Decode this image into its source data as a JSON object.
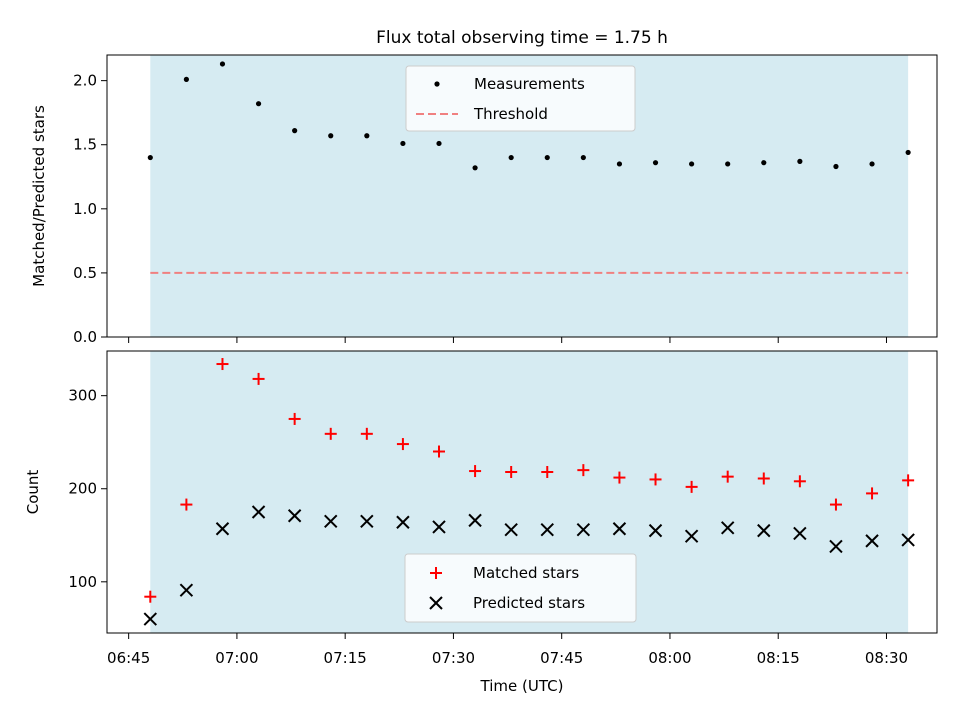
{
  "figure": {
    "title": "Flux total observing time = 1.75 h",
    "xlabel": "Time (UTC)"
  },
  "colors": {
    "shade": "#add8e6",
    "measurements": "#000000",
    "threshold": "#f08080",
    "matched": "#ff0000",
    "predicted": "#000000"
  },
  "chart_data": [
    {
      "type": "scatter",
      "panel": "top",
      "title": "Flux total observing time = 1.75 h",
      "xlabel": "",
      "ylabel": "Matched/Predicted stars",
      "ylim": [
        0,
        2.2
      ],
      "yticks": [
        0.0,
        0.5,
        1.0,
        1.5,
        2.0
      ],
      "ytick_labels": [
        "0.0",
        "0.5",
        "1.0",
        "1.5",
        "2.0"
      ],
      "xlim": [
        "06:42",
        "08:37"
      ],
      "shaded_span": [
        "06:48",
        "08:33"
      ],
      "grid": false,
      "legend_position": "upper center",
      "x": [
        "06:48",
        "06:53",
        "06:58",
        "07:03",
        "07:08",
        "07:13",
        "07:18",
        "07:23",
        "07:28",
        "07:33",
        "07:38",
        "07:43",
        "07:48",
        "07:53",
        "07:58",
        "08:03",
        "08:08",
        "08:13",
        "08:18",
        "08:23",
        "08:28",
        "08:33"
      ],
      "series": [
        {
          "name": "Measurements",
          "marker": "dot",
          "values": [
            1.4,
            2.01,
            2.13,
            1.82,
            1.61,
            1.57,
            1.57,
            1.51,
            1.51,
            1.32,
            1.4,
            1.4,
            1.4,
            1.35,
            1.36,
            1.35,
            1.35,
            1.36,
            1.37,
            1.33,
            1.35,
            1.44
          ]
        },
        {
          "name": "Threshold",
          "marker": "dashed-line",
          "values": [
            0.5,
            0.5
          ]
        }
      ]
    },
    {
      "type": "scatter",
      "panel": "bottom",
      "title": "",
      "xlabel": "Time (UTC)",
      "ylabel": "Count",
      "ylim": [
        45,
        348
      ],
      "yticks": [
        100,
        200,
        300
      ],
      "ytick_labels": [
        "100",
        "200",
        "300"
      ],
      "xlim": [
        "06:42",
        "08:37"
      ],
      "xticks": [
        "06:45",
        "07:00",
        "07:15",
        "07:30",
        "07:45",
        "08:00",
        "08:15",
        "08:30"
      ],
      "xtick_labels": [
        "06:45",
        "07:00",
        "07:15",
        "07:30",
        "07:45",
        "08:00",
        "08:15",
        "08:30"
      ],
      "shaded_span": [
        "06:48",
        "08:33"
      ],
      "grid": false,
      "legend_position": "lower center",
      "x": [
        "06:48",
        "06:53",
        "06:58",
        "07:03",
        "07:08",
        "07:13",
        "07:18",
        "07:23",
        "07:28",
        "07:33",
        "07:38",
        "07:43",
        "07:48",
        "07:53",
        "07:58",
        "08:03",
        "08:08",
        "08:13",
        "08:18",
        "08:23",
        "08:28",
        "08:33"
      ],
      "series": [
        {
          "name": "Matched stars",
          "marker": "plus",
          "values": [
            84,
            183,
            334,
            318,
            275,
            259,
            259,
            248,
            240,
            219,
            218,
            218,
            220,
            212,
            210,
            202,
            213,
            211,
            208,
            183,
            195,
            209
          ]
        },
        {
          "name": "Predicted stars",
          "marker": "cross",
          "values": [
            60,
            91,
            157,
            175,
            171,
            165,
            165,
            164,
            159,
            166,
            156,
            156,
            156,
            157,
            155,
            149,
            158,
            155,
            152,
            138,
            144,
            145
          ]
        }
      ]
    }
  ]
}
